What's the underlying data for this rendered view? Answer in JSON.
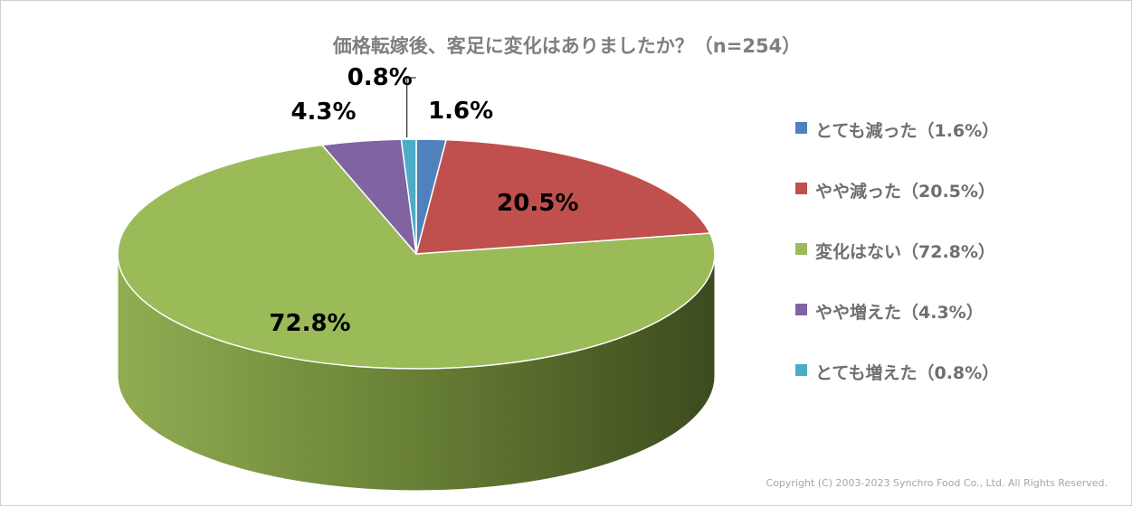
{
  "chart_data": {
    "type": "pie",
    "title": "価格転嫁後、客足に変化はありましたか？（n=254）",
    "n": 254,
    "three_d": true,
    "legend_position": "right",
    "slices": [
      {
        "label": "とても減った（1.6%）",
        "value": 1.6,
        "data_label": "1.6%",
        "color": "#4f81bd"
      },
      {
        "label": "やや減った（20.5%）",
        "value": 20.5,
        "data_label": "20.5%",
        "color": "#c0504d"
      },
      {
        "label": "変化はない（72.8%）",
        "value": 72.8,
        "data_label": "72.8%",
        "color": "#9bbb59"
      },
      {
        "label": "やや増えた（4.3%）",
        "value": 4.3,
        "data_label": "4.3%",
        "color": "#8064a2"
      },
      {
        "label": "とても増えた（0.8%）",
        "value": 0.8,
        "data_label": "0.8%",
        "color": "#4bacc6"
      }
    ]
  },
  "copyright": "Copyright (C) 2003-2023   Synchro Food Co., Ltd. All Rights Reserved."
}
